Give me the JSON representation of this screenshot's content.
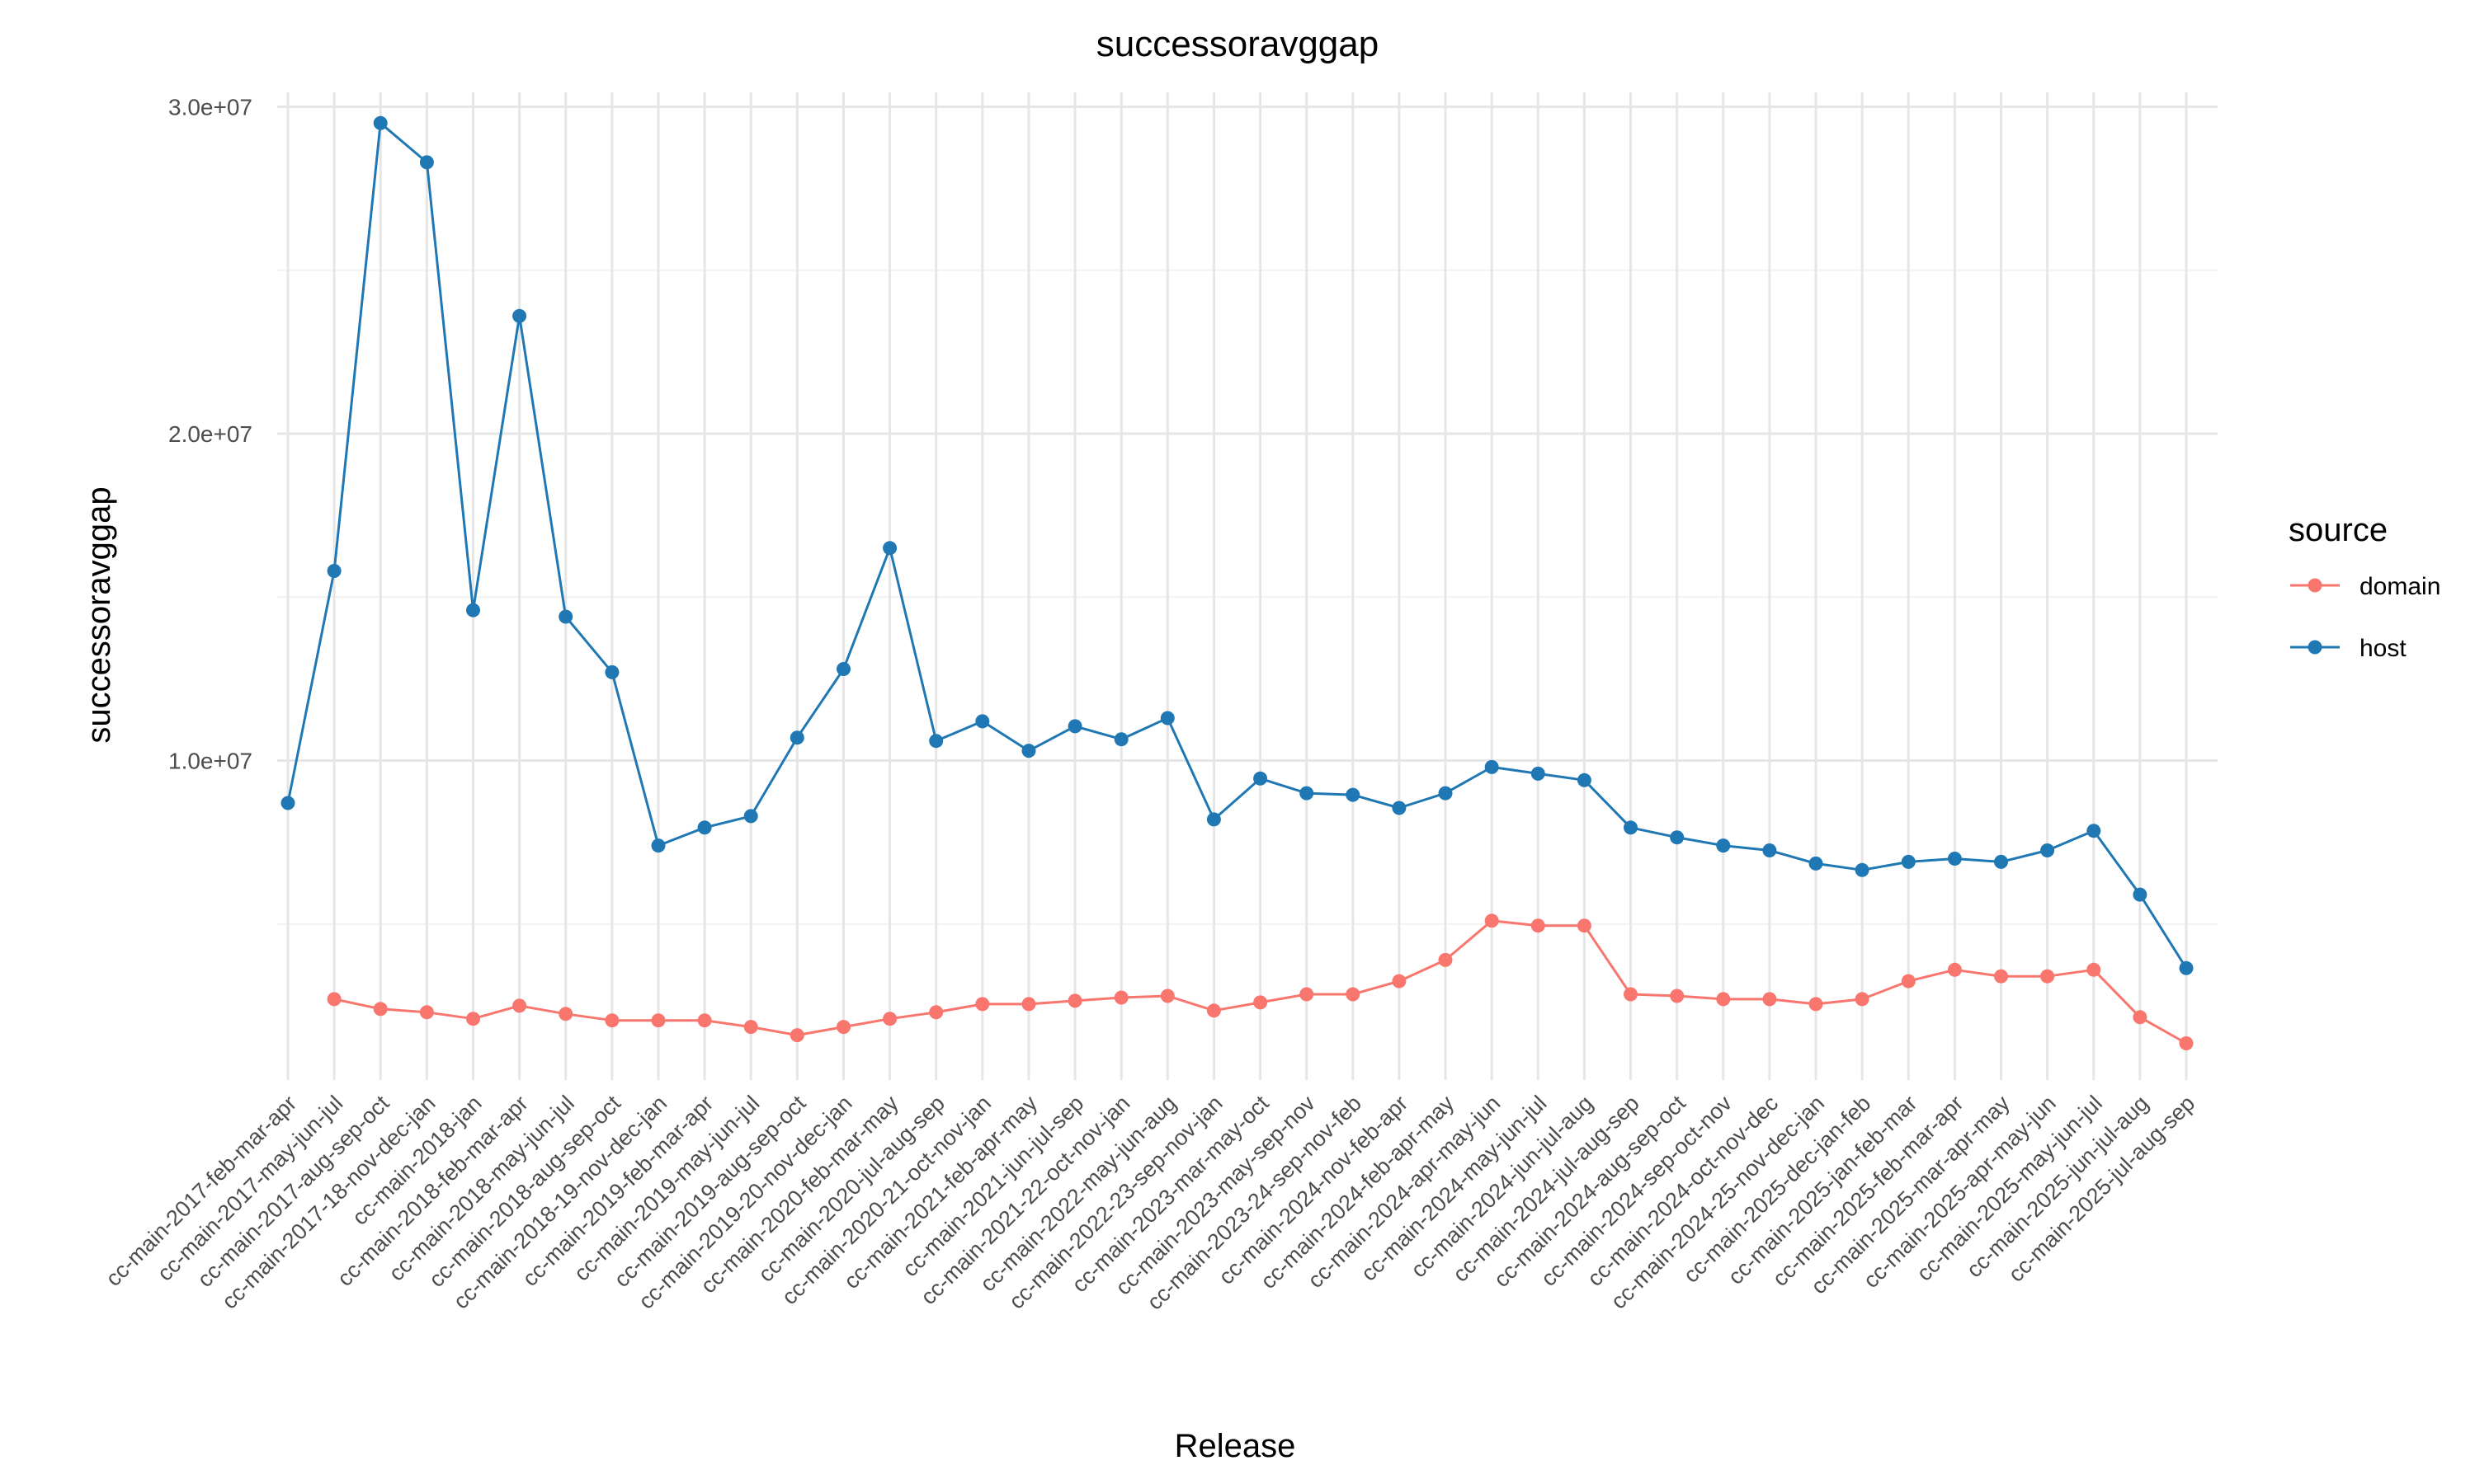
{
  "chart_data": {
    "type": "line",
    "title": "successoravggap",
    "xlabel": "Release",
    "ylabel": "successoravggap",
    "ylim": [
      0,
      30000000
    ],
    "yticks": [
      10000000,
      20000000,
      30000000
    ],
    "ytick_labels": [
      "1.0e+07",
      "2.0e+07",
      "3.0e+07"
    ],
    "grid": true,
    "legend_position": "right",
    "legend_title": "source",
    "categories": [
      "cc-main-2017-feb-mar-apr",
      "cc-main-2017-may-jun-jul",
      "cc-main-2017-aug-sep-oct",
      "cc-main-2017-18-nov-dec-jan",
      "cc-main-2018-jan",
      "cc-main-2018-feb-mar-apr",
      "cc-main-2018-may-jun-jul",
      "cc-main-2018-aug-sep-oct",
      "cc-main-2018-19-nov-dec-jan",
      "cc-main-2019-feb-mar-apr",
      "cc-main-2019-may-jun-jul",
      "cc-main-2019-aug-sep-oct",
      "cc-main-2019-20-nov-dec-jan",
      "cc-main-2020-feb-mar-may",
      "cc-main-2020-jul-aug-sep",
      "cc-main-2020-21-oct-nov-jan",
      "cc-main-2021-feb-apr-may",
      "cc-main-2021-jun-jul-sep",
      "cc-main-2021-22-oct-nov-jan",
      "cc-main-2022-may-jun-aug",
      "cc-main-2022-23-sep-nov-jan",
      "cc-main-2023-mar-may-oct",
      "cc-main-2023-may-sep-nov",
      "cc-main-2023-24-sep-nov-feb",
      "cc-main-2024-nov-feb-apr",
      "cc-main-2024-feb-apr-may",
      "cc-main-2024-apr-may-jun",
      "cc-main-2024-may-jun-jul",
      "cc-main-2024-jun-jul-aug",
      "cc-main-2024-jul-aug-sep",
      "cc-main-2024-aug-sep-oct",
      "cc-main-2024-sep-oct-nov",
      "cc-main-2024-oct-nov-dec",
      "cc-main-2024-25-nov-dec-jan",
      "cc-main-2025-dec-jan-feb",
      "cc-main-2025-jan-feb-mar",
      "cc-main-2025-feb-mar-apr",
      "cc-main-2025-mar-apr-may",
      "cc-main-2025-apr-may-jun",
      "cc-main-2025-may-jun-jul",
      "cc-main-2025-jun-jul-aug",
      "cc-main-2025-jul-aug-sep"
    ],
    "series": [
      {
        "name": "domain",
        "color": "#F8766D",
        "values": [
          null,
          2700000,
          2400000,
          2300000,
          2100000,
          2500000,
          2250000,
          2050000,
          2050000,
          2050000,
          1850000,
          1600000,
          1850000,
          2100000,
          2300000,
          2550000,
          2550000,
          2650000,
          2750000,
          2800000,
          2350000,
          2600000,
          2850000,
          2850000,
          3250000,
          3900000,
          5100000,
          4950000,
          4950000,
          2850000,
          2800000,
          2700000,
          2700000,
          2550000,
          2700000,
          3250000,
          3600000,
          3400000,
          3400000,
          3600000,
          2150000,
          1350000
        ]
      },
      {
        "name": "host",
        "color": "#1F78B4",
        "values": [
          8700000,
          15800000,
          29500000,
          28300000,
          14600000,
          23600000,
          14400000,
          12700000,
          7400000,
          7950000,
          8300000,
          10700000,
          12800000,
          16500000,
          10600000,
          11200000,
          10300000,
          11050000,
          10650000,
          11300000,
          8200000,
          9450000,
          9000000,
          8950000,
          8550000,
          9000000,
          9800000,
          9600000,
          9400000,
          7950000,
          7650000,
          7400000,
          7250000,
          6850000,
          6650000,
          6900000,
          7000000,
          6900000,
          7250000,
          7850000,
          5900000,
          3650000
        ]
      }
    ]
  }
}
